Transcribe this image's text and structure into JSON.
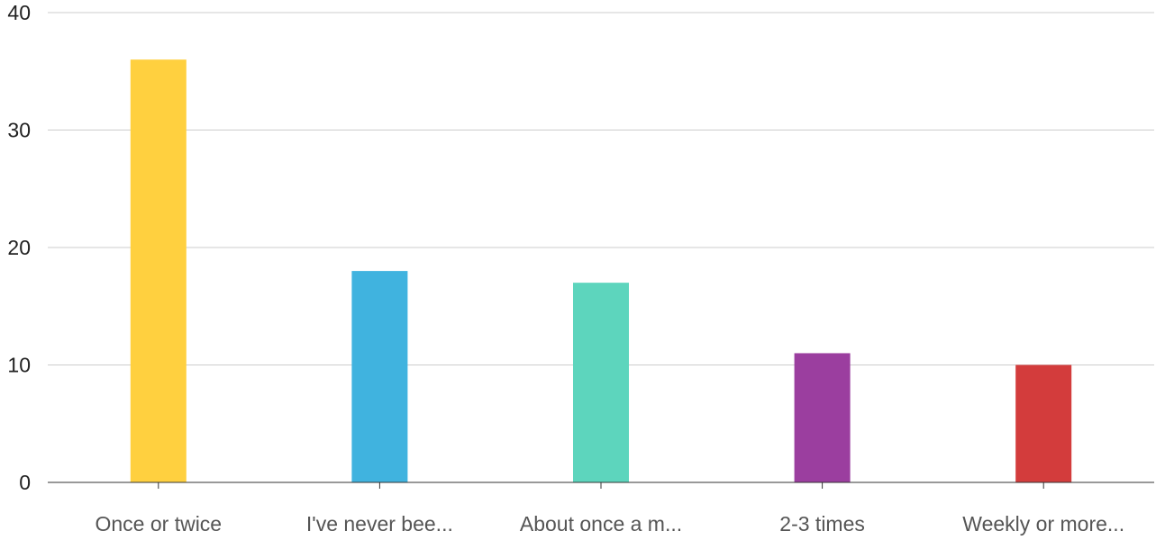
{
  "chart_data": {
    "type": "bar",
    "categories": [
      "Once or twice",
      "I've never bee...",
      "About once a m...",
      "2-3 times",
      "Weekly or more..."
    ],
    "values": [
      36,
      18,
      17,
      11,
      10
    ],
    "colors": [
      "#ffd03f",
      "#40b3df",
      "#5dd5bd",
      "#9b3e9f",
      "#d33c3c"
    ],
    "title": "",
    "xlabel": "",
    "ylabel": "",
    "ylim": [
      0,
      40
    ],
    "yticks": [
      0,
      10,
      20,
      30,
      40
    ],
    "grid": true,
    "legend": "none"
  }
}
